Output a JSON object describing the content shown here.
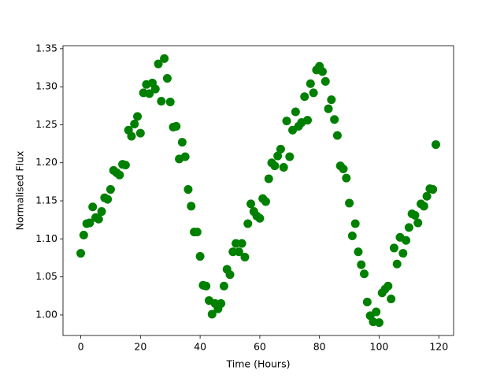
{
  "chart_data": {
    "type": "scatter",
    "xlabel": "Time (Hours)",
    "ylabel": "Normalised Flux",
    "color": "#008000",
    "grid": false,
    "xlim": [
      -5.95,
      124.95
    ],
    "ylim": [
      0.973,
      1.354
    ],
    "xticks": [
      0,
      20,
      40,
      60,
      80,
      100,
      120
    ],
    "yticks": [
      {
        "value": 1,
        "label": "1.00"
      },
      1.05,
      {
        "value": 1.1,
        "label": "1.10"
      },
      1.15,
      {
        "value": 1.2,
        "label": "1.20"
      },
      1.25,
      {
        "value": 1.3,
        "label": "1.30"
      },
      1.35
    ],
    "x": [
      0,
      1,
      2,
      3,
      4,
      5,
      6,
      7,
      8,
      9,
      10,
      11,
      12,
      13,
      14,
      15,
      16,
      17,
      18,
      19,
      20,
      21,
      22,
      23,
      24,
      25,
      26,
      27,
      28,
      29,
      30,
      31,
      32,
      33,
      34,
      35,
      36,
      37,
      38,
      39,
      40,
      41,
      42,
      43,
      44,
      45,
      46,
      47,
      48,
      49,
      50,
      51,
      52,
      53,
      54,
      55,
      56,
      57,
      58,
      59,
      60,
      61,
      62,
      63,
      64,
      65,
      66,
      67,
      68,
      69,
      70,
      71,
      72,
      73,
      74,
      75,
      76,
      77,
      78,
      79,
      80,
      81,
      82,
      83,
      84,
      85,
      86,
      87,
      88,
      89,
      90,
      91,
      92,
      93,
      94,
      95,
      96,
      97,
      98,
      99,
      100,
      101,
      102,
      103,
      104,
      105,
      106,
      107,
      108,
      109,
      110,
      111,
      112,
      113,
      114,
      115,
      116,
      117,
      118,
      119
    ],
    "values": [
      1.081,
      1.105,
      1.12,
      1.121,
      1.142,
      1.128,
      1.126,
      1.136,
      1.154,
      1.152,
      1.165,
      1.19,
      1.187,
      1.184,
      1.198,
      1.197,
      1.243,
      1.235,
      1.251,
      1.261,
      1.239,
      1.292,
      1.303,
      1.291,
      1.305,
      1.297,
      1.33,
      1.281,
      1.337,
      1.311,
      1.28,
      1.247,
      1.248,
      1.205,
      1.227,
      1.208,
      1.165,
      1.143,
      1.109,
      1.109,
      1.077,
      1.039,
      1.038,
      1.019,
      1.001,
      1.015,
      1.008,
      1.015,
      1.038,
      1.06,
      1.053,
      1.083,
      1.094,
      1.083,
      1.094,
      1.076,
      1.12,
      1.146,
      1.136,
      1.13,
      1.127,
      1.153,
      1.149,
      1.179,
      1.2,
      1.196,
      1.209,
      1.218,
      1.194,
      1.255,
      1.208,
      1.243,
      1.267,
      1.248,
      1.253,
      1.287,
      1.256,
      1.304,
      1.292,
      1.322,
      1.327,
      1.32,
      1.307,
      1.271,
      1.283,
      1.257,
      1.236,
      1.196,
      1.192,
      1.18,
      1.147,
      1.104,
      1.12,
      1.083,
      1.066,
      1.054,
      1.017,
      0.999,
      0.991,
      1.004,
      0.99,
      1.029,
      1.034,
      1.038,
      1.021,
      1.088,
      1.067,
      1.102,
      1.081,
      1.098,
      1.115,
      1.133,
      1.131,
      1.121,
      1.146,
      1.143,
      1.156,
      1.166,
      1.165,
      1.224
    ]
  }
}
